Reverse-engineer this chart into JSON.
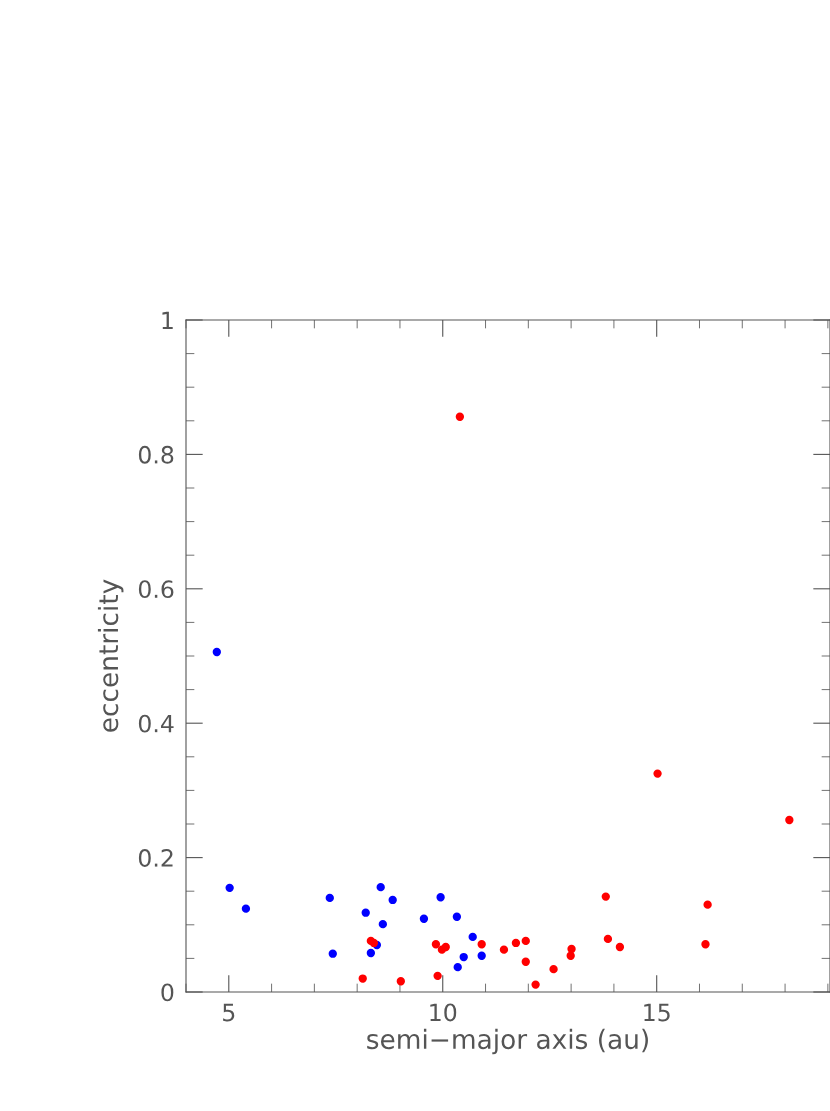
{
  "chart_data": {
    "type": "scatter",
    "xlabel": "semi−major axis (au)",
    "ylabel": "eccentricity",
    "xlim": [
      4,
      19.05
    ],
    "ylim": [
      0,
      1
    ],
    "xticks": [
      5,
      10,
      15
    ],
    "yticks": [
      0,
      0.2,
      0.4,
      0.6,
      0.8,
      1
    ],
    "grid": false,
    "legend": false,
    "marker": "circle",
    "series": [
      {
        "color": "#0000ff",
        "x": [
          4.72,
          5.02,
          5.4,
          7.36,
          7.43,
          8.2,
          8.32,
          8.46,
          8.55,
          8.6,
          8.83,
          9.56,
          9.95,
          10.33,
          10.35,
          10.49,
          10.7,
          10.91
        ],
        "values": [
          0.506,
          0.155,
          0.124,
          0.14,
          0.057,
          0.118,
          0.058,
          0.07,
          0.156,
          0.101,
          0.137,
          0.109,
          0.141,
          0.112,
          0.037,
          0.052,
          0.082,
          0.054
        ]
      },
      {
        "color": "#ff0000",
        "x": [
          10.4,
          8.13,
          8.32,
          8.39,
          9.02,
          9.84,
          9.88,
          9.98,
          10.07,
          10.91,
          11.43,
          11.71,
          11.94,
          11.94,
          12.17,
          12.59,
          12.99,
          13.01,
          13.81,
          13.86,
          14.14,
          15.02,
          16.19,
          16.14,
          18.1
        ],
        "values": [
          0.856,
          0.02,
          0.076,
          0.073,
          0.016,
          0.071,
          0.024,
          0.063,
          0.067,
          0.071,
          0.063,
          0.073,
          0.076,
          0.045,
          0.011,
          0.034,
          0.054,
          0.064,
          0.142,
          0.079,
          0.067,
          0.325,
          0.13,
          0.071,
          0.256
        ]
      }
    ]
  }
}
